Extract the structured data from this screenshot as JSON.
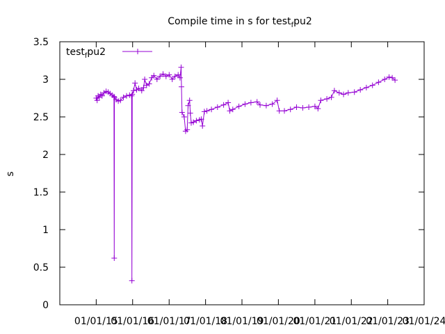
{
  "chart_data": {
    "type": "line",
    "title": "Compile time in s for test",
    "title_sub": "f",
    "title_tail": "pu2",
    "xlabel": "",
    "ylabel": "s",
    "ylim": [
      0,
      3.5
    ],
    "y_ticks": [
      "0",
      "0.5",
      "1",
      "1.5",
      "2",
      "2.5",
      "3",
      "3.5"
    ],
    "x_ticks": [
      "01/01/15",
      "01/01/16",
      "01/01/17",
      "01/01/18",
      "01/01/19",
      "01/01/20",
      "01/01/21",
      "01/01/22",
      "01/01/23",
      "01/01/24"
    ],
    "grid": false,
    "legend_position": "top-left",
    "series": [
      {
        "name": "test",
        "name_sub": "f",
        "name_tail": "pu2",
        "color": "#9400d3",
        "marker": "plus",
        "points": [
          [
            "2015-01-01",
            2.75
          ],
          [
            "2015-01-10",
            2.72
          ],
          [
            "2015-01-20",
            2.78
          ],
          [
            "2015-02-01",
            2.76
          ],
          [
            "2015-02-15",
            2.8
          ],
          [
            "2015-03-01",
            2.78
          ],
          [
            "2015-03-20",
            2.82
          ],
          [
            "2015-04-10",
            2.84
          ],
          [
            "2015-05-01",
            2.83
          ],
          [
            "2015-05-20",
            2.81
          ],
          [
            "2015-06-10",
            2.79
          ],
          [
            "2015-06-28",
            2.77
          ],
          [
            "2015-07-01",
            0.62
          ],
          [
            "2015-07-03",
            2.76
          ],
          [
            "2015-07-20",
            2.73
          ],
          [
            "2015-08-10",
            2.71
          ],
          [
            "2015-09-01",
            2.72
          ],
          [
            "2015-10-01",
            2.76
          ],
          [
            "2015-11-01",
            2.78
          ],
          [
            "2015-12-01",
            2.79
          ],
          [
            "2015-12-22",
            2.78
          ],
          [
            "2015-12-25",
            0.32
          ],
          [
            "2015-12-28",
            2.8
          ],
          [
            "2016-01-10",
            2.85
          ],
          [
            "2016-01-25",
            2.95
          ],
          [
            "2016-02-10",
            2.86
          ],
          [
            "2016-03-01",
            2.88
          ],
          [
            "2016-04-01",
            2.85
          ],
          [
            "2016-04-20",
            2.89
          ],
          [
            "2016-05-01",
            3.0
          ],
          [
            "2016-05-20",
            2.92
          ],
          [
            "2016-06-15",
            2.94
          ],
          [
            "2016-07-10",
            3.02
          ],
          [
            "2016-08-01",
            3.05
          ],
          [
            "2016-09-01",
            3.0
          ],
          [
            "2016-10-01",
            3.04
          ],
          [
            "2016-11-01",
            3.07
          ],
          [
            "2016-12-01",
            3.04
          ],
          [
            "2017-01-01",
            3.06
          ],
          [
            "2017-02-01",
            3.0
          ],
          [
            "2017-03-01",
            3.04
          ],
          [
            "2017-04-01",
            3.06
          ],
          [
            "2017-04-20",
            3.02
          ],
          [
            "2017-05-01",
            3.16
          ],
          [
            "2017-05-05",
            2.9
          ],
          [
            "2017-05-10",
            2.56
          ],
          [
            "2017-06-01",
            2.5
          ],
          [
            "2017-06-15",
            2.31
          ],
          [
            "2017-07-01",
            2.33
          ],
          [
            "2017-07-10",
            2.65
          ],
          [
            "2017-07-25",
            2.72
          ],
          [
            "2017-08-01",
            2.55
          ],
          [
            "2017-08-10",
            2.42
          ],
          [
            "2017-09-01",
            2.43
          ],
          [
            "2017-10-01",
            2.45
          ],
          [
            "2017-11-01",
            2.46
          ],
          [
            "2017-11-20",
            2.47
          ],
          [
            "2017-12-01",
            2.38
          ],
          [
            "2017-12-20",
            2.57
          ],
          [
            "2018-01-15",
            2.58
          ],
          [
            "2018-03-01",
            2.6
          ],
          [
            "2018-05-01",
            2.63
          ],
          [
            "2018-07-01",
            2.66
          ],
          [
            "2018-08-15",
            2.69
          ],
          [
            "2018-09-01",
            2.58
          ],
          [
            "2018-10-01",
            2.6
          ],
          [
            "2018-12-01",
            2.64
          ],
          [
            "2019-02-01",
            2.67
          ],
          [
            "2019-04-01",
            2.69
          ],
          [
            "2019-06-01",
            2.7
          ],
          [
            "2019-07-01",
            2.66
          ],
          [
            "2019-09-01",
            2.65
          ],
          [
            "2019-11-01",
            2.67
          ],
          [
            "2019-12-20",
            2.72
          ],
          [
            "2020-01-10",
            2.58
          ],
          [
            "2020-03-01",
            2.58
          ],
          [
            "2020-05-01",
            2.6
          ],
          [
            "2020-07-01",
            2.63
          ],
          [
            "2020-09-01",
            2.62
          ],
          [
            "2020-11-01",
            2.63
          ],
          [
            "2021-01-01",
            2.64
          ],
          [
            "2021-02-01",
            2.61
          ],
          [
            "2021-03-01",
            2.72
          ],
          [
            "2021-05-01",
            2.74
          ],
          [
            "2021-06-15",
            2.76
          ],
          [
            "2021-07-15",
            2.85
          ],
          [
            "2021-09-01",
            2.82
          ],
          [
            "2021-10-15",
            2.8
          ],
          [
            "2021-12-01",
            2.82
          ],
          [
            "2022-02-01",
            2.83
          ],
          [
            "2022-04-01",
            2.86
          ],
          [
            "2022-06-01",
            2.89
          ],
          [
            "2022-08-01",
            2.92
          ],
          [
            "2022-10-01",
            2.96
          ],
          [
            "2022-12-01",
            3.0
          ],
          [
            "2023-01-15",
            3.03
          ],
          [
            "2023-02-15",
            3.02
          ],
          [
            "2023-03-15",
            2.99
          ]
        ]
      }
    ]
  }
}
